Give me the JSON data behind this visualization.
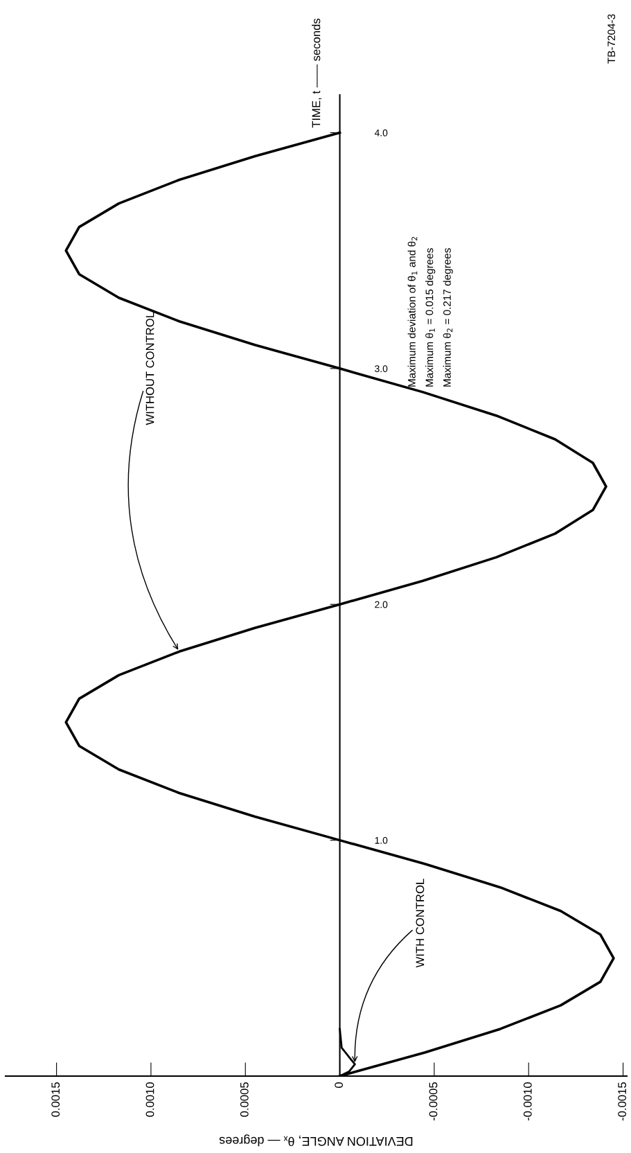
{
  "chart_data": {
    "type": "line",
    "xlabel": "DEVIATION ANGLE, θₓ — degrees",
    "ylabel": "TIME, t —— seconds",
    "xlim": [
      0.00177,
      -0.00152
    ],
    "ylim": [
      0,
      4.16
    ],
    "xticks": [
      {
        "value": 0.0015,
        "label": "0.0015"
      },
      {
        "value": 0.001,
        "label": "0.0010"
      },
      {
        "value": 0.0005,
        "label": "0.0005"
      },
      {
        "value": 0,
        "label": "0"
      },
      {
        "value": -0.0005,
        "label": "-0.0005"
      },
      {
        "value": -0.001,
        "label": "-0.0010"
      },
      {
        "value": -0.0015,
        "label": "-0.0015"
      }
    ],
    "yticks": [
      {
        "value": 1,
        "label": "1.0"
      },
      {
        "value": 2,
        "label": "2.0"
      },
      {
        "value": 3,
        "label": "3.0"
      },
      {
        "value": 4,
        "label": "4.0"
      }
    ],
    "series": [
      {
        "color": "#000000",
        "x": [
          0,
          -0.00045,
          -0.00085,
          -0.00117,
          -0.00138,
          -0.00145,
          -0.00138,
          -0.00117,
          -0.00085,
          -0.00045,
          0,
          0.00045,
          0.00085,
          0.00117,
          0.00138,
          0.00145,
          0.00138,
          0.00117,
          0.00085,
          0.00045,
          0,
          -0.00044,
          -0.00083,
          -0.00114,
          -0.00134,
          -0.00141,
          -0.00134,
          -0.00114,
          -0.00083,
          -0.00044,
          0,
          0.00045,
          0.00085,
          0.00117,
          0.00138,
          0.00145,
          0.00138,
          0.00117,
          0.00085,
          0.00045,
          0
        ],
        "values": [
          0,
          0.1,
          0.2,
          0.3,
          0.4,
          0.5,
          0.6,
          0.7,
          0.8,
          0.9,
          1.0,
          1.1,
          1.2,
          1.3,
          1.4,
          1.5,
          1.6,
          1.7,
          1.8,
          1.9,
          2.0,
          2.1,
          2.2,
          2.3,
          2.4,
          2.5,
          2.6,
          2.7,
          2.8,
          2.9,
          3.0,
          3.1,
          3.2,
          3.3,
          3.4,
          3.5,
          3.6,
          3.7,
          3.8,
          3.9,
          4.0
        ]
      },
      {
        "color": "#000000",
        "x": [
          0,
          -5e-05,
          -8e-05,
          -5e-05,
          -1e-05,
          0
        ],
        "values": [
          0,
          0.02,
          0.05,
          0.08,
          0.12,
          0.2
        ]
      }
    ],
    "annotations": [
      {
        "text": "WITHOUT CONTROL",
        "x": 0.00085,
        "y": 1.8
      },
      {
        "text": "WITH CONTROL",
        "x": -8e-05,
        "y": 0.05
      },
      "Maximum deviation of θ$_{1}$ and θ$_{2}$\nMaximum θ$_{1}$ = 0.015 degrees\nMaximum θ$_{2}$ = 0.217 degrees",
      "TB-7204-3"
    ],
    "legend": false,
    "marker": "none",
    "line_style": "solid"
  }
}
